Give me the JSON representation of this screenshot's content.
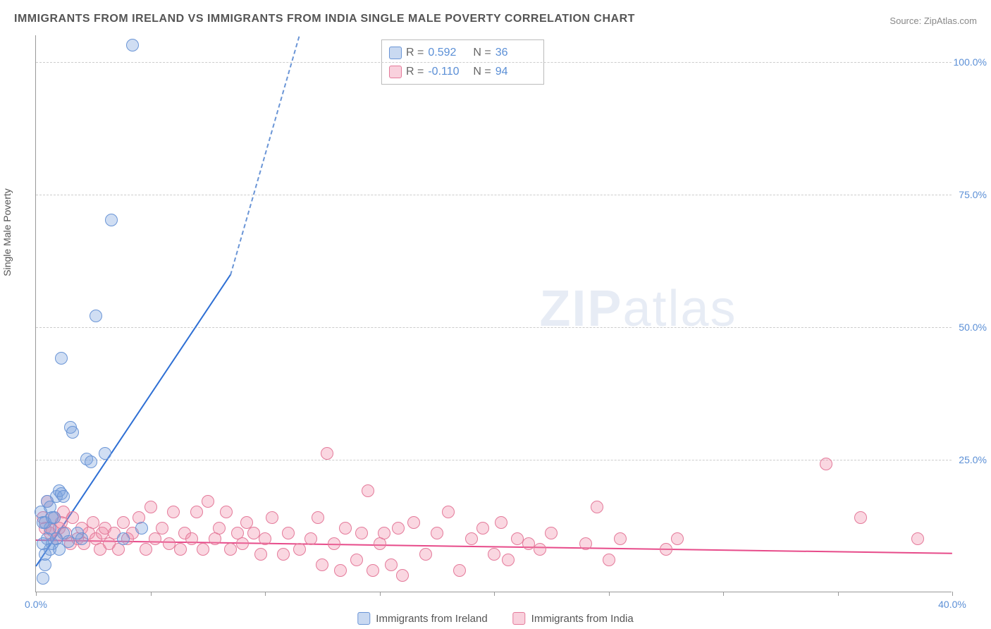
{
  "title": "IMMIGRANTS FROM IRELAND VS IMMIGRANTS FROM INDIA SINGLE MALE POVERTY CORRELATION CHART",
  "source_label": "Source:",
  "source_value": "ZipAtlas.com",
  "ylabel": "Single Male Poverty",
  "watermark": "ZIPatlas",
  "chart": {
    "type": "scatter",
    "xlim": [
      0,
      40
    ],
    "ylim": [
      0,
      105
    ],
    "yticks": [
      25,
      50,
      75,
      100
    ],
    "ytick_labels": [
      "25.0%",
      "50.0%",
      "75.0%",
      "100.0%"
    ],
    "xticks": [
      0,
      5,
      10,
      15,
      20,
      25,
      30,
      35,
      40
    ],
    "xtick_labels": [
      "0.0%",
      "",
      "",
      "",
      "",
      "",
      "",
      "",
      "40.0%"
    ],
    "background_color": "#ffffff",
    "grid_color": "#cccccc",
    "axis_color": "#999999",
    "marker_size": 18,
    "series_a": {
      "name": "Immigrants from Ireland",
      "color_fill": "rgba(120,160,220,0.35)",
      "color_stroke": "#6a95d6",
      "trend_color": "#2e6fd4",
      "r": "0.592",
      "n": "36",
      "trend": {
        "x1": 0,
        "y1": 5,
        "x2": 8.5,
        "y2": 60,
        "dash_to_x": 11.5,
        "dash_to_y": 105
      },
      "points": [
        [
          0.3,
          2.5
        ],
        [
          0.4,
          5
        ],
        [
          0.4,
          7
        ],
        [
          0.5,
          10
        ],
        [
          0.6,
          8
        ],
        [
          0.6,
          12
        ],
        [
          0.7,
          9
        ],
        [
          0.9,
          18
        ],
        [
          1.0,
          19
        ],
        [
          1.1,
          18.5
        ],
        [
          1.1,
          44
        ],
        [
          1.2,
          11
        ],
        [
          1.5,
          31
        ],
        [
          1.6,
          30
        ],
        [
          2.0,
          10
        ],
        [
          2.2,
          25
        ],
        [
          2.6,
          52
        ],
        [
          3.0,
          26
        ],
        [
          3.3,
          70
        ],
        [
          3.8,
          10
        ],
        [
          4.2,
          103
        ],
        [
          4.6,
          12
        ],
        [
          0.2,
          15
        ],
        [
          0.3,
          13
        ],
        [
          0.5,
          17
        ],
        [
          0.8,
          14
        ],
        [
          1.4,
          9.5
        ],
        [
          0.4,
          13
        ],
        [
          0.6,
          16
        ],
        [
          0.9,
          10
        ],
        [
          1.0,
          8
        ],
        [
          1.2,
          18
        ],
        [
          1.8,
          11
        ],
        [
          0.7,
          14
        ],
        [
          2.4,
          24.5
        ],
        [
          0.3,
          9
        ]
      ]
    },
    "series_b": {
      "name": "Immigrants from India",
      "color_fill": "rgba(240,140,170,0.35)",
      "color_stroke": "#e47a9a",
      "trend_color": "#e74b8a",
      "r": "-0.110",
      "n": "94",
      "trend": {
        "x1": 0,
        "y1": 10,
        "x2": 40,
        "y2": 7.5
      },
      "points": [
        [
          0.3,
          14
        ],
        [
          0.4,
          12
        ],
        [
          0.5,
          17
        ],
        [
          0.6,
          11
        ],
        [
          0.7,
          11.5
        ],
        [
          0.8,
          14
        ],
        [
          0.9,
          10
        ],
        [
          1.0,
          12
        ],
        [
          1.1,
          13
        ],
        [
          1.2,
          15
        ],
        [
          1.3,
          11
        ],
        [
          1.5,
          9
        ],
        [
          1.6,
          14
        ],
        [
          1.8,
          10
        ],
        [
          2.0,
          12
        ],
        [
          2.1,
          9
        ],
        [
          2.3,
          11
        ],
        [
          2.5,
          13
        ],
        [
          2.6,
          10
        ],
        [
          2.8,
          8
        ],
        [
          2.9,
          11
        ],
        [
          3.0,
          12
        ],
        [
          3.2,
          9
        ],
        [
          3.4,
          11
        ],
        [
          3.6,
          8
        ],
        [
          3.8,
          13
        ],
        [
          4.0,
          10
        ],
        [
          4.2,
          11
        ],
        [
          4.5,
          14
        ],
        [
          4.8,
          8
        ],
        [
          5.0,
          16
        ],
        [
          5.2,
          10
        ],
        [
          5.5,
          12
        ],
        [
          5.8,
          9
        ],
        [
          6.0,
          15
        ],
        [
          6.3,
          8
        ],
        [
          6.5,
          11
        ],
        [
          6.8,
          10
        ],
        [
          7.0,
          15
        ],
        [
          7.3,
          8
        ],
        [
          7.5,
          17
        ],
        [
          7.8,
          10
        ],
        [
          8.0,
          12
        ],
        [
          8.3,
          15
        ],
        [
          8.5,
          8
        ],
        [
          8.8,
          11
        ],
        [
          9.0,
          9
        ],
        [
          9.2,
          13
        ],
        [
          9.5,
          11
        ],
        [
          9.8,
          7
        ],
        [
          10.0,
          10
        ],
        [
          10.3,
          14
        ],
        [
          10.8,
          7
        ],
        [
          11.0,
          11
        ],
        [
          11.5,
          8
        ],
        [
          12.0,
          10
        ],
        [
          12.3,
          14
        ],
        [
          12.5,
          5
        ],
        [
          12.7,
          26
        ],
        [
          13.0,
          9
        ],
        [
          13.3,
          4
        ],
        [
          13.5,
          12
        ],
        [
          14.0,
          6
        ],
        [
          14.2,
          11
        ],
        [
          14.5,
          19
        ],
        [
          14.7,
          4
        ],
        [
          15.0,
          9
        ],
        [
          15.2,
          11
        ],
        [
          15.5,
          5
        ],
        [
          15.8,
          12
        ],
        [
          16.0,
          3
        ],
        [
          16.5,
          13
        ],
        [
          17.0,
          7
        ],
        [
          17.5,
          11
        ],
        [
          18.0,
          15
        ],
        [
          18.5,
          4
        ],
        [
          19.0,
          10
        ],
        [
          19.5,
          12
        ],
        [
          20.0,
          7
        ],
        [
          20.3,
          13
        ],
        [
          20.6,
          6
        ],
        [
          21.0,
          10
        ],
        [
          21.5,
          9
        ],
        [
          22.0,
          8
        ],
        [
          22.5,
          11
        ],
        [
          24.0,
          9
        ],
        [
          24.5,
          16
        ],
        [
          25.0,
          6
        ],
        [
          25.5,
          10
        ],
        [
          27.5,
          8
        ],
        [
          28.0,
          10
        ],
        [
          34.5,
          24
        ],
        [
          36.0,
          14
        ],
        [
          38.5,
          10
        ]
      ]
    }
  },
  "legend_stats": {
    "r_label": "R  =",
    "n_label": "N  ="
  },
  "bottom_legend": {
    "a": "Immigrants from Ireland",
    "b": "Immigrants from India"
  }
}
